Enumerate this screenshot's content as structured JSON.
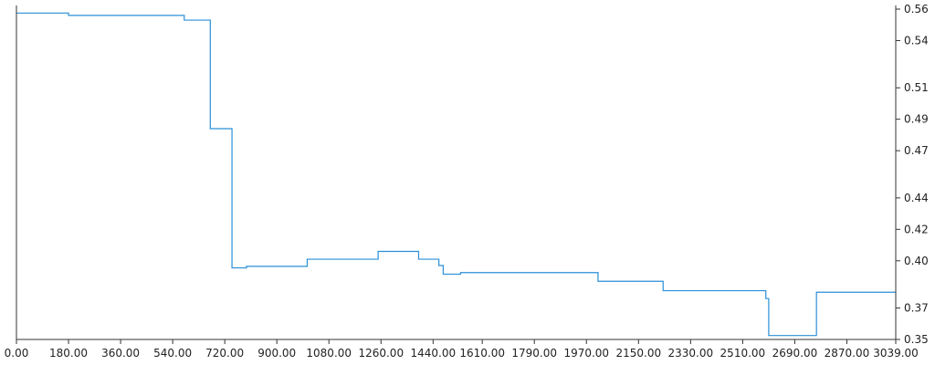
{
  "chart_data": {
    "type": "line",
    "title": "",
    "xlabel": "",
    "ylabel": "",
    "xlim": [
      0,
      3039
    ],
    "ylim": [
      0.35,
      0.56
    ],
    "x_ticks": [
      0,
      180,
      360,
      540,
      720,
      900,
      1080,
      1260,
      1440,
      1610,
      1790,
      1970,
      2150,
      2330,
      2510,
      2690,
      2870,
      3039
    ],
    "x_tick_labels": [
      "0.00",
      "180.00",
      "360.00",
      "540.00",
      "720.00",
      "900.00",
      "1080.00",
      "1260.00",
      "1440.00",
      "1610.00",
      "1790.00",
      "1970.00",
      "2150.00",
      "2330.00",
      "2510.00",
      "2690.00",
      "2870.00",
      "3039.00"
    ],
    "y_ticks": [
      0.35,
      0.37,
      0.4,
      0.42,
      0.44,
      0.47,
      0.49,
      0.51,
      0.54,
      0.56
    ],
    "y_tick_labels": [
      "0.35",
      "0.37",
      "0.40",
      "0.42",
      "0.44",
      "0.47",
      "0.49",
      "0.51",
      "0.54",
      "0.56"
    ],
    "y_axis_position": "right",
    "grid": false,
    "step": "post",
    "series": [
      {
        "color": "#2a8fd8",
        "x": [
          0,
          180,
          580,
          670,
          745,
          795,
          1005,
          1250,
          1390,
          1460,
          1475,
          1535,
          2010,
          2235,
          2590,
          2600,
          2765,
          3039
        ],
        "y": [
          0.5575,
          0.556,
          0.553,
          0.484,
          0.3955,
          0.3965,
          0.401,
          0.406,
          0.401,
          0.397,
          0.3915,
          0.3925,
          0.387,
          0.381,
          0.376,
          0.3525,
          0.38,
          0.38
        ]
      }
    ]
  }
}
